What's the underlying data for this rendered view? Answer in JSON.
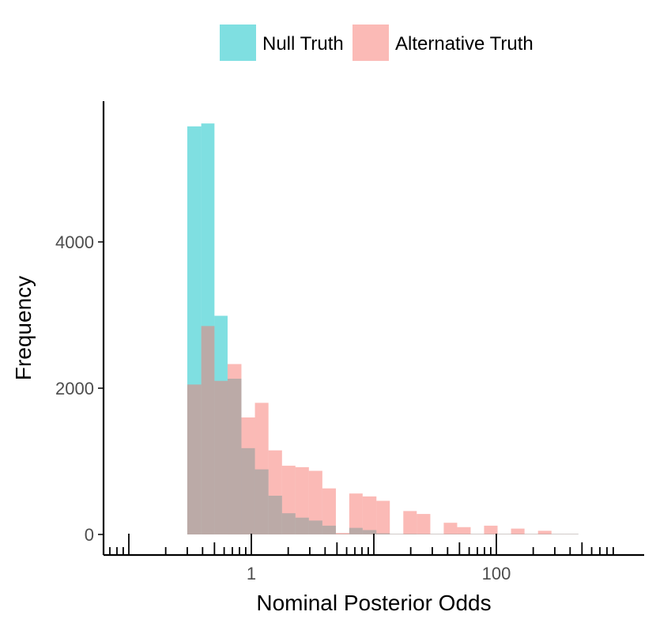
{
  "chart_data": {
    "type": "histogram",
    "xlabel": "Nominal Posterior Odds",
    "ylabel": "Frequency",
    "x_scale": "log10",
    "xlim": [
      0.009,
      1000
    ],
    "ylim": [
      0,
      5700
    ],
    "x_ticks": [
      {
        "value": 1,
        "label": "1"
      },
      {
        "value": 100,
        "label": "100"
      }
    ],
    "y_ticks": [
      {
        "value": 0,
        "label": "0"
      },
      {
        "value": 2000,
        "label": "2000"
      },
      {
        "value": 4000,
        "label": "4000"
      }
    ],
    "legend": {
      "position": "top",
      "entries": [
        "Null Truth",
        "Alternative Truth"
      ]
    },
    "grid": false,
    "bin_edges": [
      0.3,
      0.39,
      0.5,
      0.64,
      0.83,
      1.07,
      1.38,
      1.78,
      2.29,
      2.95,
      3.8,
      4.9,
      6.3,
      8.1,
      10.5,
      13.5,
      17.4,
      22.4,
      28.9,
      37.2,
      47.9,
      61.7,
      79.4,
      102.3,
      131.8,
      169.8,
      218.8,
      281.8,
      363.1,
      467.7
    ],
    "series": [
      {
        "name": "Null Truth",
        "color": "#00bfc4",
        "values": [
          5580,
          5620,
          2990,
          2130,
          1180,
          890,
          530,
          290,
          230,
          190,
          120,
          0,
          90,
          60,
          15,
          0,
          8,
          0,
          0,
          0,
          0,
          0,
          0,
          0,
          0,
          0,
          0,
          0,
          0
        ]
      },
      {
        "name": "Alternative Truth",
        "color": "#f8766d",
        "values": [
          2050,
          2850,
          2100,
          2330,
          1600,
          1800,
          1150,
          940,
          920,
          870,
          630,
          20,
          560,
          520,
          460,
          0,
          320,
          280,
          0,
          160,
          100,
          0,
          120,
          0,
          80,
          0,
          50,
          0,
          0
        ]
      }
    ]
  }
}
